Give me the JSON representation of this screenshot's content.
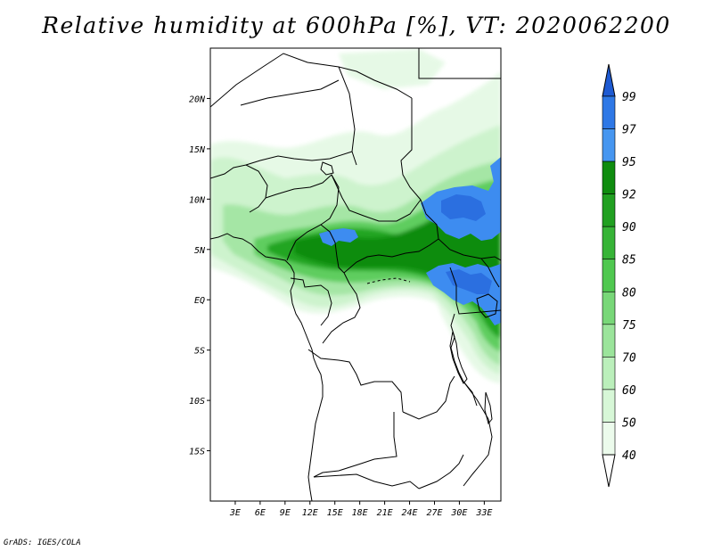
{
  "title": "Relative humidity at 600hPa [%], VT: 2020062200",
  "credit": "GrADS: IGES/COLA",
  "map": {
    "lon_range": [
      0,
      35
    ],
    "lat_range": [
      -20,
      25
    ],
    "lat_ticks": [
      {
        "value": 20,
        "label": "20N"
      },
      {
        "value": 15,
        "label": "15N"
      },
      {
        "value": 10,
        "label": "10N"
      },
      {
        "value": 5,
        "label": "5N"
      },
      {
        "value": 0,
        "label": "EQ"
      },
      {
        "value": -5,
        "label": "5S"
      },
      {
        "value": -10,
        "label": "10S"
      },
      {
        "value": -15,
        "label": "15S"
      }
    ],
    "lon_ticks": [
      {
        "value": 3,
        "label": "3E"
      },
      {
        "value": 6,
        "label": "6E"
      },
      {
        "value": 9,
        "label": "9E"
      },
      {
        "value": 12,
        "label": "12E"
      },
      {
        "value": 15,
        "label": "15E"
      },
      {
        "value": 18,
        "label": "18E"
      },
      {
        "value": 21,
        "label": "21E"
      },
      {
        "value": 24,
        "label": "24E"
      },
      {
        "value": 27,
        "label": "27E"
      },
      {
        "value": 30,
        "label": "30E"
      },
      {
        "value": 33,
        "label": "33E"
      }
    ]
  },
  "colorbar": {
    "levels": [
      {
        "label": "99",
        "color": "#1e5ad2"
      },
      {
        "label": "97",
        "color": "#2e78e6"
      },
      {
        "label": "95",
        "color": "#4696f0"
      },
      {
        "label": "92",
        "color": "#0f8c0f"
      },
      {
        "label": "90",
        "color": "#21a021"
      },
      {
        "label": "85",
        "color": "#37b437"
      },
      {
        "label": "80",
        "color": "#50c850"
      },
      {
        "label": "75",
        "color": "#78d778"
      },
      {
        "label": "70",
        "color": "#9be49b"
      },
      {
        "label": "60",
        "color": "#bbefbb"
      },
      {
        "label": "50",
        "color": "#d7f7d7"
      },
      {
        "label": "40",
        "color": "#ecfbec"
      }
    ],
    "top_color": "#1e5ad2",
    "bottom_color": "#ffffff"
  }
}
